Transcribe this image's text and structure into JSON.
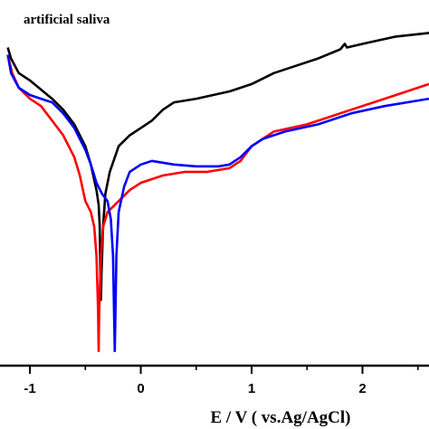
{
  "chart_data": {
    "type": "line",
    "title": "artificial saliva",
    "xlabel": "E / V ( vs.Ag/AgCl)",
    "ylabel": "",
    "xlim": [
      -1.27,
      2.6
    ],
    "x_ticks": [
      "-1",
      "0",
      "1",
      "2"
    ],
    "x_tick_values": [
      -1,
      0,
      1,
      2
    ],
    "y_axis_labels_visible": false,
    "ylim": [
      0,
      1
    ],
    "grid": false,
    "legend": "none",
    "series": [
      {
        "color": "#000000",
        "points": [
          [
            -1.2,
            0.87
          ],
          [
            -1.17,
            0.84
          ],
          [
            -1.1,
            0.8
          ],
          [
            -1.0,
            0.78
          ],
          [
            -0.9,
            0.755
          ],
          [
            -0.8,
            0.73
          ],
          [
            -0.7,
            0.7
          ],
          [
            -0.6,
            0.66
          ],
          [
            -0.5,
            0.6
          ],
          [
            -0.45,
            0.55
          ],
          [
            -0.4,
            0.48
          ],
          [
            -0.38,
            0.44
          ],
          [
            -0.37,
            0.38
          ],
          [
            -0.365,
            0.25
          ],
          [
            -0.36,
            0.18
          ],
          [
            -0.355,
            0.25
          ],
          [
            -0.34,
            0.38
          ],
          [
            -0.32,
            0.47
          ],
          [
            -0.28,
            0.53
          ],
          [
            -0.2,
            0.6
          ],
          [
            -0.1,
            0.63
          ],
          [
            0.0,
            0.65
          ],
          [
            0.1,
            0.67
          ],
          [
            0.2,
            0.7
          ],
          [
            0.3,
            0.72
          ],
          [
            0.5,
            0.73
          ],
          [
            0.8,
            0.75
          ],
          [
            1.0,
            0.77
          ],
          [
            1.2,
            0.8
          ],
          [
            1.4,
            0.82
          ],
          [
            1.6,
            0.84
          ],
          [
            1.8,
            0.865
          ],
          [
            1.84,
            0.88
          ],
          [
            1.86,
            0.87
          ],
          [
            2.0,
            0.88
          ],
          [
            2.3,
            0.9
          ],
          [
            2.6,
            0.91
          ]
        ]
      },
      {
        "color": "#ff0000",
        "points": [
          [
            -1.2,
            0.85
          ],
          [
            -1.16,
            0.8
          ],
          [
            -1.1,
            0.76
          ],
          [
            -1.0,
            0.73
          ],
          [
            -0.9,
            0.71
          ],
          [
            -0.8,
            0.67
          ],
          [
            -0.7,
            0.63
          ],
          [
            -0.6,
            0.57
          ],
          [
            -0.55,
            0.52
          ],
          [
            -0.5,
            0.45
          ],
          [
            -0.45,
            0.42
          ],
          [
            -0.42,
            0.38
          ],
          [
            -0.4,
            0.3
          ],
          [
            -0.385,
            0.15
          ],
          [
            -0.38,
            0.04
          ],
          [
            -0.375,
            0.15
          ],
          [
            -0.36,
            0.3
          ],
          [
            -0.34,
            0.38
          ],
          [
            -0.3,
            0.42
          ],
          [
            -0.2,
            0.45
          ],
          [
            -0.1,
            0.48
          ],
          [
            0.0,
            0.5
          ],
          [
            0.2,
            0.52
          ],
          [
            0.4,
            0.53
          ],
          [
            0.6,
            0.53
          ],
          [
            0.8,
            0.54
          ],
          [
            0.9,
            0.56
          ],
          [
            1.0,
            0.6
          ],
          [
            1.1,
            0.62
          ],
          [
            1.2,
            0.64
          ],
          [
            1.5,
            0.66
          ],
          [
            1.8,
            0.69
          ],
          [
            2.1,
            0.72
          ],
          [
            2.4,
            0.75
          ],
          [
            2.6,
            0.77
          ]
        ]
      },
      {
        "color": "#0000ff",
        "points": [
          [
            -1.2,
            0.85
          ],
          [
            -1.17,
            0.8
          ],
          [
            -1.1,
            0.76
          ],
          [
            -1.0,
            0.74
          ],
          [
            -0.9,
            0.73
          ],
          [
            -0.8,
            0.72
          ],
          [
            -0.7,
            0.69
          ],
          [
            -0.6,
            0.65
          ],
          [
            -0.5,
            0.59
          ],
          [
            -0.45,
            0.55
          ],
          [
            -0.4,
            0.5
          ],
          [
            -0.35,
            0.47
          ],
          [
            -0.3,
            0.45
          ],
          [
            -0.27,
            0.4
          ],
          [
            -0.25,
            0.3
          ],
          [
            -0.24,
            0.12
          ],
          [
            -0.235,
            0.04
          ],
          [
            -0.23,
            0.12
          ],
          [
            -0.22,
            0.3
          ],
          [
            -0.2,
            0.42
          ],
          [
            -0.15,
            0.49
          ],
          [
            -0.1,
            0.53
          ],
          [
            0.0,
            0.55
          ],
          [
            0.1,
            0.56
          ],
          [
            0.2,
            0.555
          ],
          [
            0.3,
            0.55
          ],
          [
            0.5,
            0.545
          ],
          [
            0.7,
            0.545
          ],
          [
            0.8,
            0.55
          ],
          [
            0.9,
            0.57
          ],
          [
            1.0,
            0.6
          ],
          [
            1.1,
            0.62
          ],
          [
            1.3,
            0.64
          ],
          [
            1.6,
            0.66
          ],
          [
            1.9,
            0.69
          ],
          [
            2.2,
            0.71
          ],
          [
            2.6,
            0.73
          ]
        ]
      }
    ]
  }
}
